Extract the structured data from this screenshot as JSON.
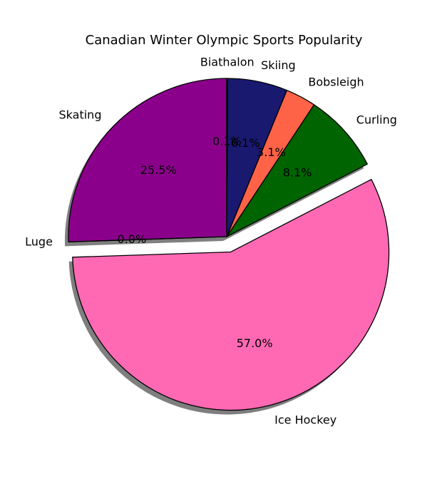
{
  "chart_data": {
    "type": "pie",
    "title": "Canadian Winter Olympic Sports Popularity",
    "slices": [
      {
        "label": "Skating",
        "value": 25.5,
        "pct_label": "25.5%",
        "color": "#8b008b",
        "explode": 0.0
      },
      {
        "label": "Luge",
        "value": 0.0,
        "pct_label": "0.0%",
        "color": "#00ced1",
        "explode": 0.0
      },
      {
        "label": "Ice Hockey",
        "value": 57.0,
        "pct_label": "57.0%",
        "color": "#ff69b4",
        "explode": 0.1
      },
      {
        "label": "Curling",
        "value": 8.1,
        "pct_label": "8.1%",
        "color": "#006400",
        "explode": 0.0
      },
      {
        "label": "Bobsleigh",
        "value": 3.1,
        "pct_label": "3.1%",
        "color": "#ff6347",
        "explode": 0.0
      },
      {
        "label": "Skiing",
        "value": 6.1,
        "pct_label": "6.1%",
        "color": "#191970",
        "explode": 0.0
      },
      {
        "label": "Biathalon",
        "value": 0.1,
        "pct_label": "0.1%",
        "color": "#ffd700",
        "explode": 0.0
      }
    ],
    "start_angle_deg": 90,
    "direction": "counterclockwise",
    "shadow": true,
    "legend": "none",
    "grid": false
  }
}
